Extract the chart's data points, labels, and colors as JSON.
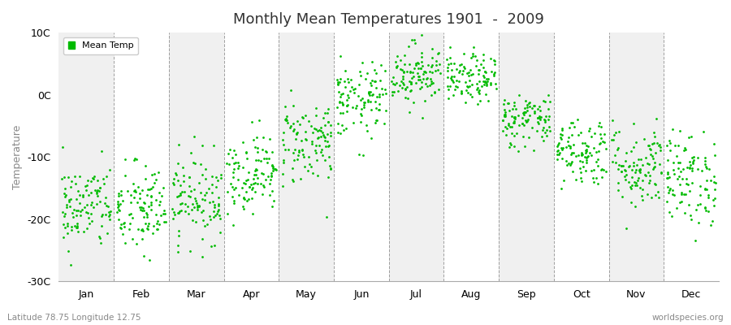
{
  "title": "Monthly Mean Temperatures 1901  -  2009",
  "ylabel": "Temperature",
  "xlabel_labels": [
    "Jan",
    "Feb",
    "Mar",
    "Apr",
    "May",
    "Jun",
    "Jul",
    "Aug",
    "Sep",
    "Oct",
    "Nov",
    "Dec"
  ],
  "footnote_left": "Latitude 78.75 Longitude 12.75",
  "footnote_right": "worldspecies.org",
  "legend_label": "Mean Temp",
  "dot_color": "#00bb00",
  "background_color": "#ffffff",
  "plot_bg_color": "#ffffff",
  "band_color_odd": "#f0f0f0",
  "band_color_even": "#ffffff",
  "ylim": [
    -30,
    10
  ],
  "ytick_labels": [
    "-30C",
    "-20C",
    "-10C",
    "0C",
    "10C"
  ],
  "ytick_values": [
    -30,
    -20,
    -10,
    0,
    10
  ],
  "monthly_means": [
    -18.0,
    -18.5,
    -16.5,
    -12.5,
    -7.5,
    -1.0,
    3.5,
    2.5,
    -4.0,
    -9.0,
    -11.5,
    -13.5
  ],
  "monthly_stds": [
    3.5,
    3.8,
    3.5,
    3.2,
    3.5,
    3.0,
    2.5,
    2.0,
    2.2,
    2.8,
    3.5,
    3.8
  ],
  "n_years": 109,
  "seed": 42
}
